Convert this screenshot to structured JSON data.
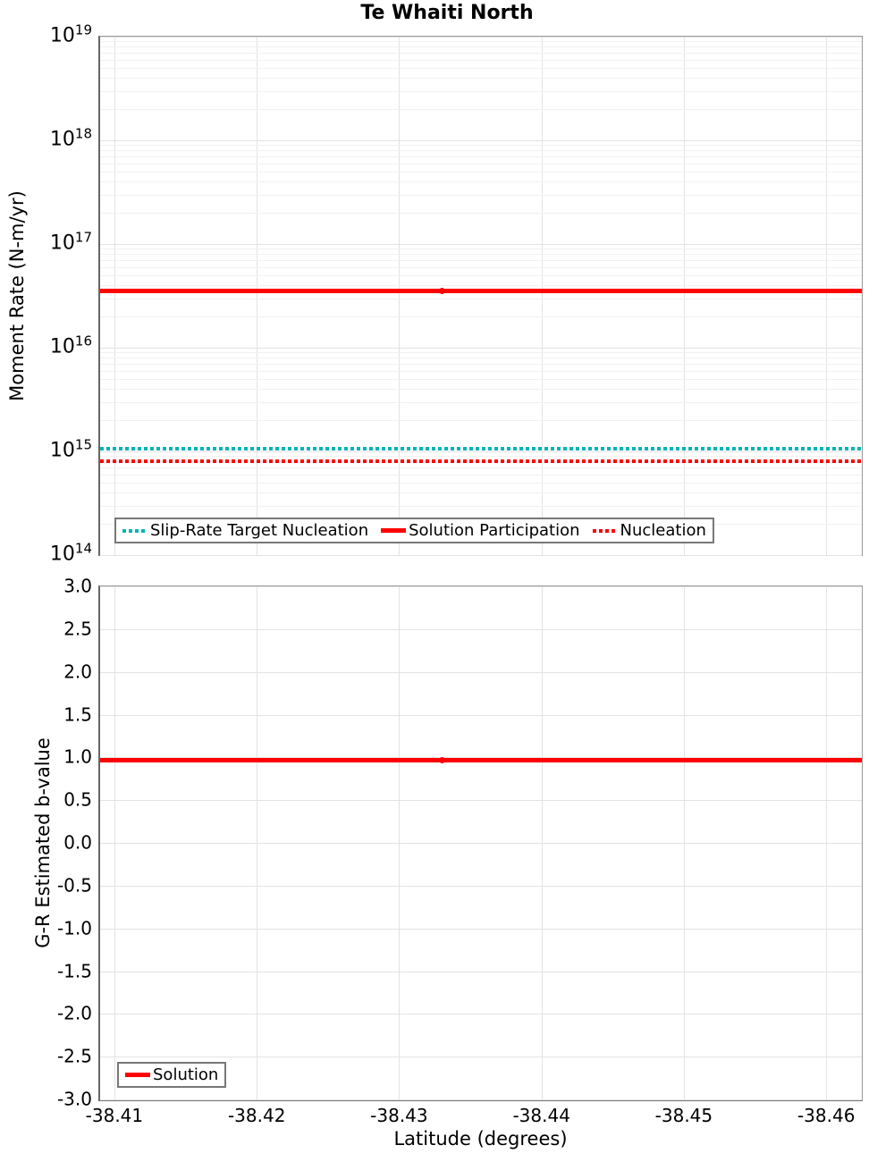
{
  "figure": {
    "background": "#ffffff",
    "accent_red": "#ff0000",
    "accent_teal": "#00b4b4",
    "grid_major_color": "#e3e3e3",
    "grid_minor_color": "#f1f1f1",
    "spine_color": "#808080"
  },
  "chart_data": [
    {
      "type": "line",
      "title": "Te Whaiti North",
      "ylabel": "Moment Rate (N-m/yr)",
      "yscale": "log",
      "ylim": [
        100000000000000.0,
        1e+19
      ],
      "ytick_exponents": [
        19,
        18,
        17,
        16,
        15,
        14
      ],
      "minor_grid_multiples": [
        2,
        3,
        4,
        5,
        6,
        7,
        8,
        9
      ],
      "xlim": [
        -38.409,
        -38.4625
      ],
      "xticks": [
        -38.41,
        -38.42,
        -38.43,
        -38.44,
        -38.45,
        -38.46
      ],
      "grid": true,
      "legend_position": "bottom-left",
      "series": [
        {
          "name": "Slip-Rate Target Nucleation",
          "color": "#00b4b4",
          "line_style": "dotted",
          "y": 1050000000000000.0
        },
        {
          "name": "Solution Participation",
          "color": "#ff0000",
          "line_style": "solid",
          "y": 3.5e+16,
          "marker_lat": -38.433
        },
        {
          "name": "Nucleation",
          "color": "#ff0000",
          "line_style": "dotted",
          "y": 800000000000000.0
        }
      ]
    },
    {
      "type": "line",
      "ylabel": "G-R Estimated b-value",
      "yscale": "linear",
      "ylim": [
        -3.0,
        3.0
      ],
      "yticks": [
        3.0,
        2.5,
        2.0,
        1.5,
        1.0,
        0.5,
        0.0,
        -0.5,
        -1.0,
        -1.5,
        -2.0,
        -2.5,
        -3.0
      ],
      "xlabel": "Latitude (degrees)",
      "xlim": [
        -38.409,
        -38.4625
      ],
      "xticks": [
        -38.41,
        -38.42,
        -38.43,
        -38.44,
        -38.45,
        -38.46
      ],
      "grid": true,
      "legend_position": "bottom-left",
      "series": [
        {
          "name": "Solution",
          "color": "#ff0000",
          "line_style": "solid",
          "y": 0.97,
          "marker_lat": -38.433
        }
      ]
    }
  ]
}
